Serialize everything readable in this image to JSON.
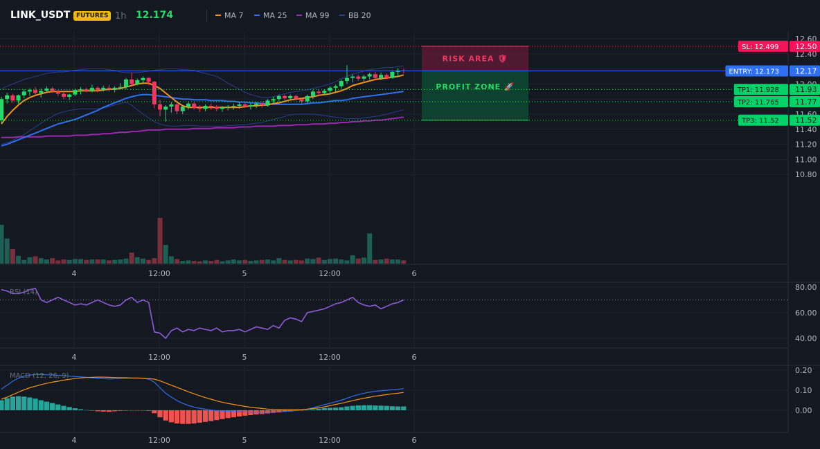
{
  "header": {
    "symbol": "LINK_USDT",
    "badge": "FUTURES",
    "interval": "1h",
    "price": "12.174",
    "legend": [
      {
        "label": "MA 7",
        "color": "#f7931a"
      },
      {
        "label": "MA 25",
        "color": "#2f6ff2"
      },
      {
        "label": "MA 99",
        "color": "#9c27b0"
      },
      {
        "label": "BB 20",
        "color": "#2a3f8f"
      }
    ]
  },
  "chart_data": [
    {
      "type": "candlestick",
      "panel": "price",
      "x_ticks": [
        "4",
        "12:00",
        "5",
        "12:00",
        "6"
      ],
      "y_ticks": [
        "12.60",
        "12.40",
        "12.20",
        "12.00",
        "11.80",
        "11.60",
        "11.40",
        "11.20",
        "11.00",
        "10.80"
      ],
      "ylim": [
        10.62,
        12.63
      ],
      "candles": [
        [
          11.52,
          11.83,
          11.48,
          11.8
        ],
        [
          11.8,
          11.88,
          11.74,
          11.85
        ],
        [
          11.85,
          11.87,
          11.75,
          11.78
        ],
        [
          11.78,
          11.86,
          11.74,
          11.85
        ],
        [
          11.85,
          11.93,
          11.81,
          11.9
        ],
        [
          11.9,
          11.94,
          11.84,
          11.92
        ],
        [
          11.92,
          11.96,
          11.86,
          11.88
        ],
        [
          11.88,
          11.94,
          11.82,
          11.91
        ],
        [
          11.91,
          11.97,
          11.88,
          11.94
        ],
        [
          11.94,
          11.96,
          11.88,
          11.9
        ],
        [
          11.9,
          11.92,
          11.84,
          11.87
        ],
        [
          11.87,
          11.89,
          11.8,
          11.83
        ],
        [
          11.83,
          11.87,
          11.79,
          11.86
        ],
        [
          11.86,
          11.94,
          11.84,
          11.92
        ],
        [
          11.92,
          11.96,
          11.86,
          11.93
        ],
        [
          11.93,
          11.95,
          11.89,
          11.91
        ],
        [
          11.91,
          11.99,
          11.89,
          11.95
        ],
        [
          11.95,
          11.97,
          11.89,
          11.92
        ],
        [
          11.92,
          11.98,
          11.9,
          11.95
        ],
        [
          11.95,
          11.99,
          11.9,
          11.93
        ],
        [
          11.93,
          11.97,
          11.89,
          11.95
        ],
        [
          11.95,
          12.01,
          11.93,
          11.96
        ],
        [
          11.96,
          12.08,
          11.93,
          12.06
        ],
        [
          12.06,
          12.15,
          11.98,
          12.0
        ],
        [
          12.0,
          12.07,
          11.98,
          12.05
        ],
        [
          12.05,
          12.1,
          12.01,
          12.08
        ],
        [
          12.08,
          12.09,
          11.98,
          12.03
        ],
        [
          12.03,
          12.04,
          11.68,
          11.73
        ],
        [
          11.73,
          11.79,
          11.57,
          11.66
        ],
        [
          11.66,
          11.72,
          11.5,
          11.7
        ],
        [
          11.7,
          11.76,
          11.62,
          11.73
        ],
        [
          11.73,
          11.76,
          11.6,
          11.64
        ],
        [
          11.64,
          11.72,
          11.6,
          11.7
        ],
        [
          11.7,
          11.76,
          11.66,
          11.74
        ],
        [
          11.74,
          11.76,
          11.66,
          11.68
        ],
        [
          11.68,
          11.72,
          11.63,
          11.67
        ],
        [
          11.67,
          11.73,
          11.64,
          11.71
        ],
        [
          11.71,
          11.74,
          11.66,
          11.7
        ],
        [
          11.7,
          11.72,
          11.64,
          11.67
        ],
        [
          11.67,
          11.71,
          11.63,
          11.69
        ],
        [
          11.69,
          11.72,
          11.65,
          11.7
        ],
        [
          11.7,
          11.74,
          11.66,
          11.71
        ],
        [
          11.71,
          11.76,
          11.67,
          11.73
        ],
        [
          11.73,
          11.76,
          11.68,
          11.7
        ],
        [
          11.7,
          11.75,
          11.66,
          11.72
        ],
        [
          11.72,
          11.76,
          11.68,
          11.74
        ],
        [
          11.74,
          11.77,
          11.69,
          11.72
        ],
        [
          11.72,
          11.8,
          11.7,
          11.78
        ],
        [
          11.78,
          11.83,
          11.74,
          11.8
        ],
        [
          11.8,
          11.86,
          11.77,
          11.84
        ],
        [
          11.84,
          11.86,
          11.79,
          11.81
        ],
        [
          11.81,
          11.86,
          11.78,
          11.84
        ],
        [
          11.84,
          11.86,
          11.78,
          11.8
        ],
        [
          11.8,
          11.82,
          11.74,
          11.77
        ],
        [
          11.77,
          11.86,
          11.75,
          11.84
        ],
        [
          11.84,
          11.92,
          11.8,
          11.9
        ],
        [
          11.9,
          11.93,
          11.85,
          11.88
        ],
        [
          11.88,
          11.93,
          11.85,
          11.91
        ],
        [
          11.91,
          11.97,
          11.87,
          11.95
        ],
        [
          11.95,
          11.99,
          11.9,
          11.97
        ],
        [
          11.97,
          12.06,
          11.94,
          12.04
        ],
        [
          12.04,
          12.25,
          12.0,
          12.08
        ],
        [
          12.08,
          12.13,
          12.02,
          12.1
        ],
        [
          12.1,
          12.12,
          12.04,
          12.07
        ],
        [
          12.07,
          12.12,
          12.03,
          12.1
        ],
        [
          12.1,
          12.15,
          12.06,
          12.13
        ],
        [
          12.13,
          12.16,
          12.06,
          12.08
        ],
        [
          12.08,
          12.15,
          12.05,
          12.12
        ],
        [
          12.12,
          12.14,
          12.06,
          12.08
        ],
        [
          12.08,
          12.18,
          12.07,
          12.16
        ],
        [
          12.16,
          12.21,
          12.1,
          12.18
        ],
        [
          12.18,
          12.2,
          12.14,
          12.17
        ]
      ],
      "ma7": [
        11.47,
        11.57,
        11.65,
        11.72,
        11.78,
        11.82,
        11.85,
        11.87,
        11.89,
        11.9,
        11.9,
        11.9,
        11.9,
        11.9,
        11.91,
        11.91,
        11.91,
        11.91,
        11.92,
        11.93,
        11.93,
        11.94,
        11.96,
        11.98,
        12.0,
        12.01,
        12.01,
        11.98,
        11.94,
        11.88,
        11.82,
        11.76,
        11.71,
        11.69,
        11.69,
        11.69,
        11.69,
        11.69,
        11.69,
        11.69,
        11.69,
        11.69,
        11.69,
        11.7,
        11.71,
        11.71,
        11.72,
        11.72,
        11.74,
        11.75,
        11.77,
        11.79,
        11.8,
        11.81,
        11.82,
        11.83,
        11.85,
        11.86,
        11.87,
        11.89,
        11.91,
        11.94,
        11.98,
        12.0,
        12.02,
        12.04,
        12.06,
        12.07,
        12.08,
        12.09,
        12.1,
        12.12
      ],
      "ma25": [
        11.18,
        11.2,
        11.23,
        11.26,
        11.29,
        11.32,
        11.35,
        11.38,
        11.41,
        11.44,
        11.47,
        11.49,
        11.51,
        11.53,
        11.56,
        11.59,
        11.62,
        11.65,
        11.69,
        11.72,
        11.75,
        11.78,
        11.81,
        11.83,
        11.85,
        11.86,
        11.86,
        11.85,
        11.84,
        11.83,
        11.82,
        11.81,
        11.8,
        11.8,
        11.79,
        11.79,
        11.79,
        11.78,
        11.78,
        11.78,
        11.77,
        11.77,
        11.76,
        11.76,
        11.75,
        11.75,
        11.74,
        11.74,
        11.73,
        11.73,
        11.73,
        11.73,
        11.73,
        11.73,
        11.74,
        11.75,
        11.75,
        11.76,
        11.77,
        11.78,
        11.78,
        11.79,
        11.81,
        11.82,
        11.83,
        11.84,
        11.85,
        11.86,
        11.87,
        11.88,
        11.89,
        11.9
      ],
      "ma99": [
        11.29,
        11.29,
        11.29,
        11.3,
        11.3,
        11.3,
        11.3,
        11.3,
        11.31,
        11.31,
        11.31,
        11.31,
        11.31,
        11.32,
        11.32,
        11.32,
        11.33,
        11.33,
        11.34,
        11.34,
        11.35,
        11.36,
        11.36,
        11.37,
        11.37,
        11.38,
        11.39,
        11.39,
        11.39,
        11.4,
        11.4,
        11.4,
        11.4,
        11.4,
        11.41,
        11.41,
        11.41,
        11.41,
        11.42,
        11.42,
        11.42,
        11.42,
        11.43,
        11.43,
        11.43,
        11.44,
        11.44,
        11.44,
        11.44,
        11.45,
        11.45,
        11.45,
        11.46,
        11.46,
        11.46,
        11.47,
        11.47,
        11.47,
        11.48,
        11.48,
        11.49,
        11.49,
        11.5,
        11.5,
        11.51,
        11.51,
        11.52,
        11.52,
        11.53,
        11.54,
        11.55,
        11.56
      ],
      "bb_upper": [
        11.93,
        11.97,
        12.0,
        12.03,
        12.06,
        12.08,
        12.1,
        12.12,
        12.14,
        12.15,
        12.16,
        12.16,
        12.17,
        12.18,
        12.19,
        12.2,
        12.2,
        12.2,
        12.2,
        12.19,
        12.18,
        12.16,
        12.15,
        12.15,
        12.15,
        12.16,
        12.17,
        12.18,
        12.19,
        12.2,
        12.2,
        12.2,
        12.19,
        12.19,
        12.18,
        12.16,
        12.14,
        12.12,
        12.1,
        12.06,
        12.01,
        11.97,
        11.93,
        11.89,
        11.86,
        11.84,
        11.82,
        11.82,
        11.83,
        11.85,
        11.87,
        11.89,
        11.9,
        11.91,
        11.92,
        11.94,
        11.96,
        11.98,
        12.0,
        12.03,
        12.07,
        12.1,
        12.13,
        12.15,
        12.17,
        12.19,
        12.2,
        12.21,
        12.22,
        12.22,
        12.23,
        12.24
      ],
      "bb_lower": [
        11.2,
        11.22,
        11.25,
        11.29,
        11.33,
        11.38,
        11.43,
        11.48,
        11.53,
        11.57,
        11.61,
        11.63,
        11.65,
        11.66,
        11.67,
        11.67,
        11.67,
        11.67,
        11.68,
        11.7,
        11.72,
        11.74,
        11.76,
        11.72,
        11.66,
        11.6,
        11.55,
        11.5,
        11.47,
        11.45,
        11.44,
        11.44,
        11.45,
        11.45,
        11.45,
        11.44,
        11.44,
        11.44,
        11.44,
        11.44,
        11.45,
        11.45,
        11.46,
        11.46,
        11.47,
        11.48,
        11.49,
        11.51,
        11.53,
        11.55,
        11.57,
        11.59,
        11.6,
        11.6,
        11.6,
        11.6,
        11.59,
        11.58,
        11.57,
        11.56,
        11.55,
        11.54,
        11.54,
        11.54,
        11.55,
        11.56,
        11.57,
        11.58,
        11.6,
        11.62,
        11.64,
        11.66
      ],
      "volume": [
        0.85,
        0.55,
        0.32,
        0.17,
        0.08,
        0.14,
        0.16,
        0.12,
        0.09,
        0.12,
        0.07,
        0.09,
        0.08,
        0.1,
        0.1,
        0.08,
        0.09,
        0.09,
        0.09,
        0.07,
        0.08,
        0.09,
        0.11,
        0.24,
        0.14,
        0.11,
        0.08,
        0.12,
        1.0,
        0.41,
        0.16,
        0.1,
        0.06,
        0.07,
        0.06,
        0.05,
        0.07,
        0.06,
        0.08,
        0.05,
        0.07,
        0.09,
        0.07,
        0.08,
        0.06,
        0.07,
        0.08,
        0.09,
        0.07,
        0.12,
        0.08,
        0.07,
        0.08,
        0.07,
        0.11,
        0.1,
        0.13,
        0.08,
        0.1,
        0.11,
        0.09,
        0.07,
        0.18,
        0.11,
        0.13,
        0.66,
        0.08,
        0.09,
        0.11,
        0.09,
        0.09,
        0.07
      ],
      "levels": {
        "sl": {
          "label": "SL: 12.499",
          "value": 12.5,
          "price_label": "12.50"
        },
        "entry": {
          "label": "ENTRY: 12.173",
          "value": 12.173,
          "price_label": "12.17"
        },
        "tp1": {
          "label": "TP1: 11.928",
          "value": 11.928,
          "price_label": "11.93"
        },
        "tp2": {
          "label": "TP2: 11.765",
          "value": 11.765,
          "price_label": "11.77"
        },
        "tp3": {
          "label": "TP3: 11.52",
          "value": 11.52,
          "price_label": "11.52"
        }
      },
      "zones": {
        "risk_label": "RISK AREA 🛡",
        "profit_label": "PROFIT ZONE 🚀"
      }
    },
    {
      "type": "line",
      "panel": "rsi",
      "title": "RSI (14)",
      "x_ticks": [
        "4",
        "12:00",
        "5",
        "12:00",
        "6"
      ],
      "y_ticks": [
        "80.00",
        "60.00",
        "40.00"
      ],
      "ylim": [
        33,
        83
      ],
      "overbought": 70,
      "values": [
        78,
        77,
        75,
        75,
        76,
        78,
        79,
        70,
        68,
        70,
        72,
        70,
        68,
        66,
        67,
        66,
        68,
        70,
        68,
        66,
        65,
        66,
        70,
        72,
        68,
        70,
        68,
        45,
        44,
        40,
        46,
        48,
        45,
        47,
        46,
        48,
        47,
        46,
        48,
        45,
        46,
        46,
        47,
        45,
        47,
        49,
        48,
        47,
        50,
        48,
        54,
        56,
        55,
        53,
        60,
        61,
        62,
        63,
        65,
        67,
        68,
        70,
        72,
        68,
        66,
        65,
        66,
        63,
        65,
        67,
        68,
        70
      ]
    },
    {
      "type": "bar+line",
      "panel": "macd",
      "title": "MACD (12, 26, 9)",
      "x_ticks": [
        "4",
        "12:00",
        "5",
        "12:00",
        "6"
      ],
      "y_ticks": [
        "0.20",
        "0.10",
        "0.00"
      ],
      "ylim": [
        -0.12,
        0.22
      ],
      "macd": [
        0.105,
        0.125,
        0.145,
        0.16,
        0.17,
        0.176,
        0.178,
        0.178,
        0.177,
        0.176,
        0.174,
        0.172,
        0.17,
        0.168,
        0.166,
        0.164,
        0.162,
        0.16,
        0.158,
        0.156,
        0.158,
        0.159,
        0.16,
        0.16,
        0.16,
        0.159,
        0.155,
        0.14,
        0.112,
        0.085,
        0.065,
        0.048,
        0.035,
        0.024,
        0.016,
        0.01,
        0.005,
        0.001,
        -0.002,
        -0.004,
        -0.005,
        -0.006,
        -0.007,
        -0.008,
        -0.009,
        -0.009,
        -0.01,
        -0.01,
        -0.009,
        -0.008,
        -0.006,
        -0.004,
        -0.001,
        0.002,
        0.006,
        0.012,
        0.02,
        0.028,
        0.035,
        0.042,
        0.05,
        0.06,
        0.07,
        0.078,
        0.085,
        0.09,
        0.094,
        0.097,
        0.1,
        0.102,
        0.104,
        0.108
      ],
      "signal": [
        0.055,
        0.065,
        0.078,
        0.09,
        0.102,
        0.112,
        0.12,
        0.128,
        0.134,
        0.14,
        0.145,
        0.15,
        0.154,
        0.158,
        0.161,
        0.163,
        0.164,
        0.165,
        0.165,
        0.164,
        0.163,
        0.162,
        0.162,
        0.161,
        0.161,
        0.16,
        0.158,
        0.155,
        0.147,
        0.136,
        0.125,
        0.114,
        0.103,
        0.092,
        0.082,
        0.072,
        0.063,
        0.055,
        0.047,
        0.04,
        0.034,
        0.029,
        0.024,
        0.019,
        0.015,
        0.012,
        0.009,
        0.006,
        0.004,
        0.003,
        0.002,
        0.002,
        0.002,
        0.003,
        0.005,
        0.008,
        0.012,
        0.017,
        0.023,
        0.029,
        0.035,
        0.041,
        0.048,
        0.054,
        0.06,
        0.065,
        0.07,
        0.074,
        0.078,
        0.082,
        0.085,
        0.089
      ],
      "histogram": [
        0.05,
        0.06,
        0.068,
        0.07,
        0.068,
        0.064,
        0.058,
        0.05,
        0.043,
        0.036,
        0.029,
        0.022,
        0.016,
        0.01,
        0.005,
        0.001,
        -0.002,
        -0.005,
        -0.007,
        -0.008,
        -0.005,
        -0.003,
        -0.002,
        -0.001,
        -0.001,
        -0.001,
        -0.003,
        -0.015,
        -0.035,
        -0.051,
        -0.06,
        -0.066,
        -0.068,
        -0.068,
        -0.066,
        -0.062,
        -0.058,
        -0.054,
        -0.049,
        -0.044,
        -0.039,
        -0.035,
        -0.031,
        -0.027,
        -0.024,
        -0.021,
        -0.019,
        -0.016,
        -0.013,
        -0.011,
        -0.008,
        -0.006,
        -0.003,
        -0.001,
        0.001,
        0.004,
        0.008,
        0.011,
        0.012,
        0.013,
        0.015,
        0.019,
        0.022,
        0.024,
        0.025,
        0.025,
        0.024,
        0.023,
        0.022,
        0.02,
        0.019,
        0.019
      ]
    }
  ]
}
